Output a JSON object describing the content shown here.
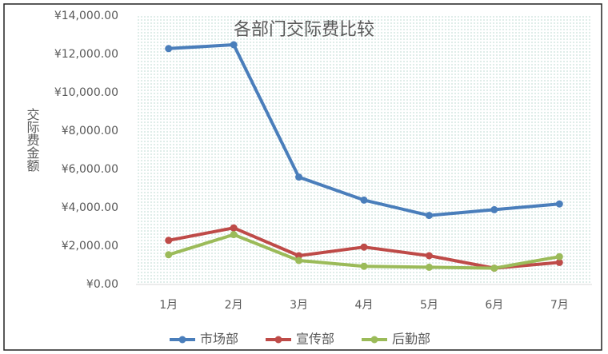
{
  "chart_data": {
    "type": "line",
    "title": "各部门交际费比较",
    "y_label": "交际费金额",
    "categories": [
      "1月",
      "2月",
      "3月",
      "4月",
      "5月",
      "6月",
      "7月"
    ],
    "series": [
      {
        "name": "市场部",
        "color": "#4a7ebb",
        "values": [
          12300,
          12500,
          5600,
          4400,
          3600,
          3900,
          4200
        ]
      },
      {
        "name": "宣传部",
        "color": "#be4b48",
        "values": [
          2300,
          2950,
          1500,
          1950,
          1500,
          850,
          1150
        ]
      },
      {
        "name": "后勤部",
        "color": "#9bbb59",
        "values": [
          1550,
          2600,
          1250,
          950,
          900,
          850,
          1450
        ]
      }
    ],
    "ylim": [
      0,
      14000
    ],
    "yticks": [
      {
        "value": 0,
        "label": "¥0.00"
      },
      {
        "value": 2000,
        "label": "¥2,000.00"
      },
      {
        "value": 4000,
        "label": "¥4,000.00"
      },
      {
        "value": 6000,
        "label": "¥6,000.00"
      },
      {
        "value": 8000,
        "label": "¥8,000.00"
      },
      {
        "value": 10000,
        "label": "¥10,000.00"
      },
      {
        "value": 12000,
        "label": "¥12,000.00"
      },
      {
        "value": 14000,
        "label": "¥14,000.00"
      }
    ],
    "grid": false,
    "legend": "bottom"
  }
}
